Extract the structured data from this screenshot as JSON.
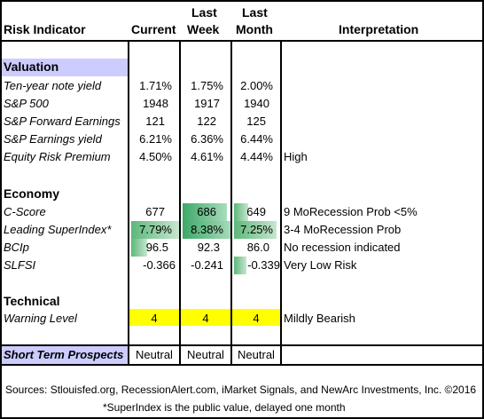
{
  "header": {
    "col_indicator": "Risk Indicator",
    "col_current": "Current",
    "col_last_week_1": "Last",
    "col_last_week_2": "Week",
    "col_last_month_1": "Last",
    "col_last_month_2": "Month",
    "col_interpretation": "Interpretation"
  },
  "valuation": {
    "title": "Valuation",
    "rows": [
      {
        "label": "Ten-year note yield",
        "current": "1.71%",
        "week": "1.75%",
        "month": "2.00%",
        "interp": ""
      },
      {
        "label": "S&P 500",
        "current": "1948",
        "week": "1917",
        "month": "1940",
        "interp": ""
      },
      {
        "label": "S&P Forward Earnings",
        "current": "121",
        "week": "122",
        "month": "125",
        "interp": ""
      },
      {
        "label": "S&P Earnings yield",
        "current": "6.21%",
        "week": "6.36%",
        "month": "6.44%",
        "interp": ""
      },
      {
        "label": "Equity Risk Premium",
        "current": "4.50%",
        "week": "4.61%",
        "month": "4.44%",
        "interp": "High"
      }
    ]
  },
  "economy": {
    "title": "Economy",
    "rows": [
      {
        "label": "C-Score",
        "current": "677",
        "week": "686",
        "month": "649",
        "interp": "9 MoRecession Prob <5%"
      },
      {
        "label": "Leading SuperIndex*",
        "current": "7.79%",
        "week": "8.38%",
        "month": "7.25%",
        "interp": "3-4 MoRecession Prob"
      },
      {
        "label": "BCIp",
        "current": "96.5",
        "week": "92.3",
        "month": "86.0",
        "interp": "No recession indicated"
      },
      {
        "label": "SLFSI",
        "current": "-0.366",
        "week": "-0.241",
        "month": "-0.339",
        "interp": "Very Low Risk"
      }
    ]
  },
  "technical": {
    "title": "Technical",
    "rows": [
      {
        "label": "Warning Level",
        "current": "4",
        "week": "4",
        "month": "4",
        "interp": "Mildly Bearish"
      }
    ]
  },
  "prospects": {
    "label": "Short Term Prospects",
    "current": "Neutral",
    "week": "Neutral",
    "month": "Neutral"
  },
  "footer": {
    "sources": "Sources: Stlouisfed.org, RecessionAlert.com, iMarket Signals, and NewArc Investments, Inc. ©2016",
    "note": "*SuperIndex is the public value, delayed one month"
  },
  "colors": {
    "section_fill": "#ccccff",
    "warning_fill": "#ffff00",
    "databar_green": "#5cb87a"
  }
}
